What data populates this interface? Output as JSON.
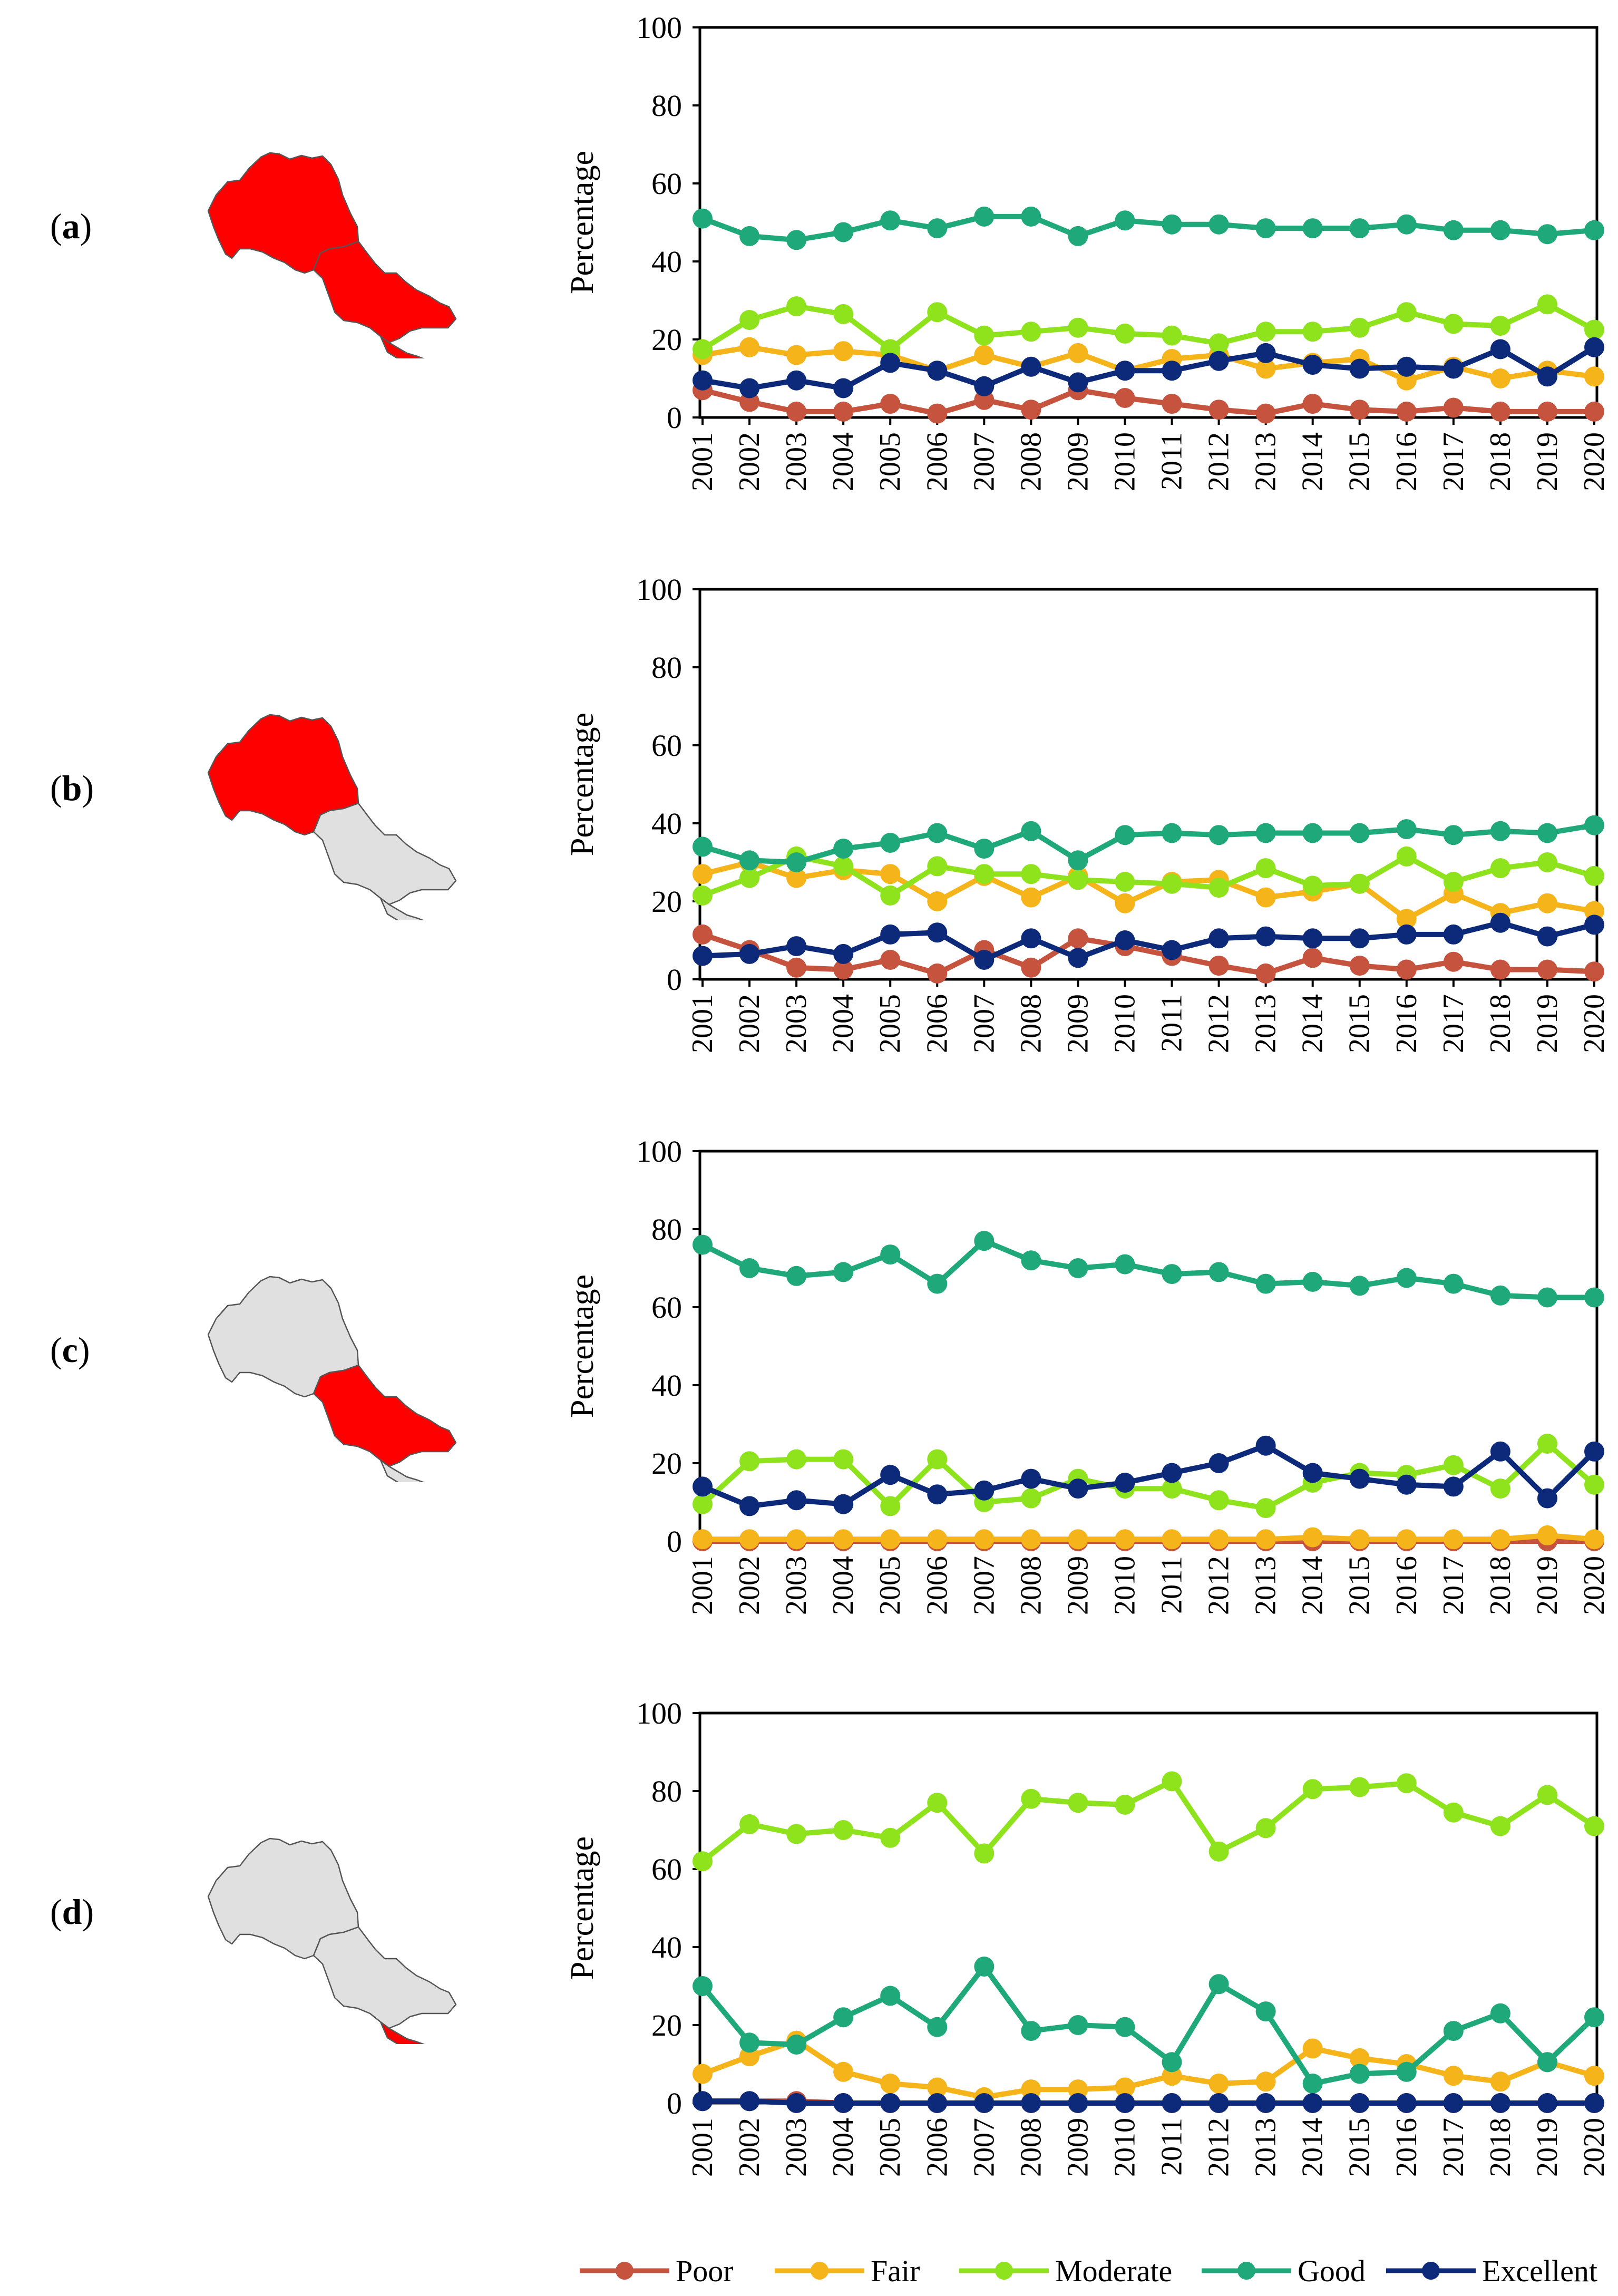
{
  "chart_data": [
    {
      "type": "line",
      "panel_label": "a",
      "ylabel": "Percentage",
      "ylim": [
        0,
        100
      ],
      "yticks": [
        "0",
        "20",
        "40",
        "60",
        "80",
        "100"
      ],
      "highlighted_region": "whole basin",
      "categories": [
        "2001",
        "2002",
        "2003",
        "2004",
        "2005",
        "2006",
        "2007",
        "2008",
        "2009",
        "2010",
        "2011",
        "2012",
        "2013",
        "2014",
        "2015",
        "2016",
        "2017",
        "2018",
        "2019",
        "2020"
      ],
      "series": [
        {
          "name": "Poor",
          "values": [
            7,
            4,
            1.5,
            1.5,
            3.5,
            1,
            4.5,
            2,
            7,
            5,
            3.5,
            2,
            1,
            3.5,
            2,
            1.5,
            2.5,
            1.5,
            1.5,
            1.5
          ]
        },
        {
          "name": "Fair",
          "values": [
            16,
            18,
            16,
            17,
            16,
            12,
            16,
            13,
            16.5,
            12,
            15,
            16,
            12.5,
            14,
            15,
            9.5,
            13,
            10,
            12,
            10.5
          ]
        },
        {
          "name": "Moderate",
          "values": [
            17.5,
            25,
            28.5,
            26.5,
            17.5,
            27,
            21,
            22,
            23,
            21.5,
            21,
            19,
            22,
            22,
            23,
            27,
            24,
            23.5,
            29,
            22.5
          ]
        },
        {
          "name": "Good",
          "values": [
            51,
            46.5,
            45.5,
            47.5,
            50.5,
            48.5,
            51.5,
            51.5,
            46.5,
            50.5,
            49.5,
            49.5,
            48.5,
            48.5,
            48.5,
            49.5,
            48,
            48,
            47,
            48
          ]
        },
        {
          "name": "Excellent",
          "values": [
            9.5,
            7.5,
            9.5,
            7.5,
            14,
            12,
            8,
            13,
            9,
            12,
            12,
            14.5,
            16.5,
            13.5,
            12.5,
            13,
            12.5,
            17.5,
            10.5,
            18
          ]
        }
      ]
    },
    {
      "type": "line",
      "panel_label": "b",
      "ylabel": "Percentage",
      "ylim": [
        0,
        100
      ],
      "yticks": [
        "0",
        "20",
        "40",
        "60",
        "80",
        "100"
      ],
      "highlighted_region": "upper basin",
      "categories": [
        "2001",
        "2002",
        "2003",
        "2004",
        "2005",
        "2006",
        "2007",
        "2008",
        "2009",
        "2010",
        "2011",
        "2012",
        "2013",
        "2014",
        "2015",
        "2016",
        "2017",
        "2018",
        "2019",
        "2020"
      ],
      "series": [
        {
          "name": "Poor",
          "values": [
            11.5,
            7.5,
            3,
            2.5,
            5,
            1.5,
            7.5,
            3,
            10.5,
            8.5,
            6,
            3.5,
            1.5,
            5.5,
            3.5,
            2.5,
            4.5,
            2.5,
            2.5,
            2
          ]
        },
        {
          "name": "Fair",
          "values": [
            27,
            30,
            26,
            28,
            27,
            20,
            26.5,
            21,
            26.5,
            19.5,
            25,
            25.5,
            21,
            22.5,
            24.5,
            15.5,
            22,
            17,
            19.5,
            17.5
          ]
        },
        {
          "name": "Moderate",
          "values": [
            21.5,
            26,
            31.5,
            29,
            21.5,
            29,
            27,
            27,
            25.5,
            25,
            24.5,
            23.5,
            28.5,
            24,
            24.5,
            31.5,
            25,
            28.5,
            30,
            26.5
          ]
        },
        {
          "name": "Good",
          "values": [
            34,
            30.5,
            30,
            33.5,
            35,
            37.5,
            33.5,
            38,
            30.5,
            37,
            37.5,
            37,
            37.5,
            37.5,
            37.5,
            38.5,
            37,
            38,
            37.5,
            39.5
          ]
        },
        {
          "name": "Excellent",
          "values": [
            6,
            6.5,
            8.5,
            6.5,
            11.5,
            12,
            5,
            10.5,
            5.5,
            10,
            7.5,
            10.5,
            11,
            10.5,
            10.5,
            11.5,
            11.5,
            14.5,
            11,
            14
          ]
        }
      ]
    },
    {
      "type": "line",
      "panel_label": "c",
      "ylabel": "Percentage",
      "ylim": [
        0,
        100
      ],
      "yticks": [
        "0",
        "20",
        "40",
        "60",
        "80",
        "100"
      ],
      "highlighted_region": "middle basin",
      "categories": [
        "2001",
        "2002",
        "2003",
        "2004",
        "2005",
        "2006",
        "2007",
        "2008",
        "2009",
        "2010",
        "2011",
        "2012",
        "2013",
        "2014",
        "2015",
        "2016",
        "2017",
        "2018",
        "2019",
        "2020"
      ],
      "series": [
        {
          "name": "Poor",
          "values": [
            0,
            0,
            0,
            0,
            0,
            0,
            0,
            0,
            0,
            0,
            0,
            0,
            0,
            0,
            0,
            0,
            0,
            0,
            0,
            0
          ]
        },
        {
          "name": "Fair",
          "values": [
            0.5,
            0.5,
            0.5,
            0.5,
            0.5,
            0.5,
            0.5,
            0.5,
            0.5,
            0.5,
            0.5,
            0.5,
            0.5,
            1,
            0.5,
            0.5,
            0.5,
            0.5,
            1.5,
            0.5
          ]
        },
        {
          "name": "Moderate",
          "values": [
            9.5,
            20.5,
            21,
            21,
            9,
            21,
            10,
            11,
            16,
            13.5,
            13.5,
            10.5,
            8.5,
            15,
            17.5,
            17,
            19.5,
            13.5,
            25,
            14.5
          ]
        },
        {
          "name": "Good",
          "values": [
            76,
            70,
            68,
            69,
            73.5,
            66,
            77,
            72,
            70,
            71,
            68.5,
            69,
            66,
            66.5,
            65.5,
            67.5,
            66,
            63,
            62.5,
            62.5
          ]
        },
        {
          "name": "Excellent",
          "values": [
            14,
            9,
            10.5,
            9.5,
            17,
            12,
            13,
            16,
            13.5,
            15,
            17.5,
            20,
            24.5,
            17.5,
            16,
            14.5,
            14,
            23,
            11,
            23
          ]
        }
      ]
    },
    {
      "type": "line",
      "panel_label": "d",
      "ylabel": "Percentage",
      "ylim": [
        0,
        100
      ],
      "yticks": [
        "0",
        "20",
        "40",
        "60",
        "80",
        "100"
      ],
      "highlighted_region": "lower basin",
      "categories": [
        "2001",
        "2002",
        "2003",
        "2004",
        "2005",
        "2006",
        "2007",
        "2008",
        "2009",
        "2010",
        "2011",
        "2012",
        "2013",
        "2014",
        "2015",
        "2016",
        "2017",
        "2018",
        "2019",
        "2020"
      ],
      "series": [
        {
          "name": "Poor",
          "values": [
            0.5,
            0.5,
            0.5,
            0,
            0,
            0,
            0,
            0,
            0,
            0,
            0,
            0,
            0,
            0,
            0,
            0,
            0,
            0,
            0,
            0
          ]
        },
        {
          "name": "Fair",
          "values": [
            7.5,
            12,
            16,
            8,
            5,
            4,
            1.5,
            3.5,
            3.5,
            4,
            7,
            5,
            5.5,
            14,
            11.5,
            10,
            7,
            5.5,
            10.5,
            7
          ]
        },
        {
          "name": "Moderate",
          "values": [
            62,
            71.5,
            69,
            70,
            68,
            77,
            64,
            78,
            77,
            76.5,
            82.5,
            64.5,
            70.5,
            80.5,
            81,
            82,
            74.5,
            71,
            79,
            71
          ]
        },
        {
          "name": "Good",
          "values": [
            30,
            15.5,
            15,
            22,
            27.5,
            19.5,
            35,
            18.5,
            20,
            19.5,
            10.5,
            30.5,
            23.5,
            5,
            7.5,
            8,
            18.5,
            23,
            10.5,
            22
          ]
        },
        {
          "name": "Excellent",
          "values": [
            0.5,
            0.5,
            0,
            0,
            0,
            0,
            0,
            0,
            0,
            0,
            0,
            0,
            0,
            0,
            0,
            0,
            0,
            0,
            0,
            0
          ]
        }
      ]
    }
  ],
  "legend": [
    {
      "name": "Poor",
      "color": "#c5533d"
    },
    {
      "name": "Fair",
      "color": "#f5b41a"
    },
    {
      "name": "Moderate",
      "color": "#8ee31c"
    },
    {
      "name": "Good",
      "color": "#1fa97a"
    },
    {
      "name": "Excellent",
      "color": "#0d2a7a"
    }
  ],
  "colors": {
    "highlight": "#ff0000",
    "inactive_region": "#e0e0e0",
    "outline": "#555555"
  }
}
